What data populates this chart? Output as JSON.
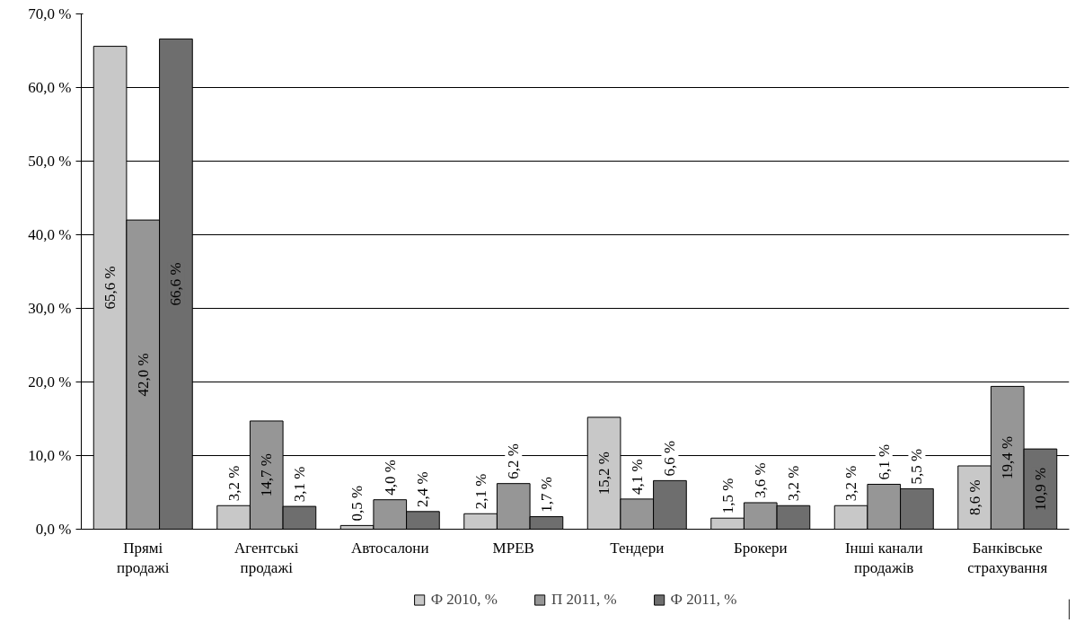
{
  "chart_data": {
    "type": "bar",
    "categories": [
      "Прямі\nпродажі",
      "Агентські\nпродажі",
      "Автосалони",
      "МРЕВ",
      "Тендери",
      "Брокери",
      "Інші канали\nпродажів",
      "Банківське\nстрахування"
    ],
    "series": [
      {
        "name": "Ф 2010, %",
        "color": "#c8c8c8",
        "values": [
          65.6,
          3.2,
          0.5,
          2.1,
          15.2,
          1.5,
          3.2,
          8.6
        ],
        "value_labels": [
          "65,6 %",
          "3,2 %",
          "0,5 %",
          "2,1 %",
          "15,2 %",
          "1,5 %",
          "3,2 %",
          "8,6 %"
        ]
      },
      {
        "name": "П 2011, %",
        "color": "#969696",
        "values": [
          42.0,
          14.7,
          4.0,
          6.2,
          4.1,
          3.6,
          6.1,
          19.4
        ],
        "value_labels": [
          "42,0 %",
          "14,7 %",
          "4,0 %",
          "6,2 %",
          "4,1 %",
          "3,6 %",
          "6,1 %",
          "19,4 %"
        ]
      },
      {
        "name": "Ф 2011, %",
        "color": "#6e6e6e",
        "values": [
          66.6,
          3.1,
          2.4,
          1.7,
          6.6,
          3.2,
          5.5,
          10.9
        ],
        "value_labels": [
          "66,6 %",
          "3,1 %",
          "2,4 %",
          "1,7 %",
          "6,6 %",
          "3,2 %",
          "5,5 %",
          "10,9 %"
        ]
      }
    ],
    "ylim": [
      0,
      70
    ],
    "yticks": [
      {
        "value": 0,
        "label": "0,0 %"
      },
      {
        "value": 10,
        "label": "10,0 %"
      },
      {
        "value": 20,
        "label": "20,0 %"
      },
      {
        "value": 30,
        "label": "30,0 %"
      },
      {
        "value": 40,
        "label": "40,0 %"
      },
      {
        "value": 50,
        "label": "50,0 %"
      },
      {
        "value": 60,
        "label": "60,0 %"
      },
      {
        "value": 70,
        "label": "70,0 %"
      }
    ],
    "grid": "y",
    "legend": "bottom"
  }
}
